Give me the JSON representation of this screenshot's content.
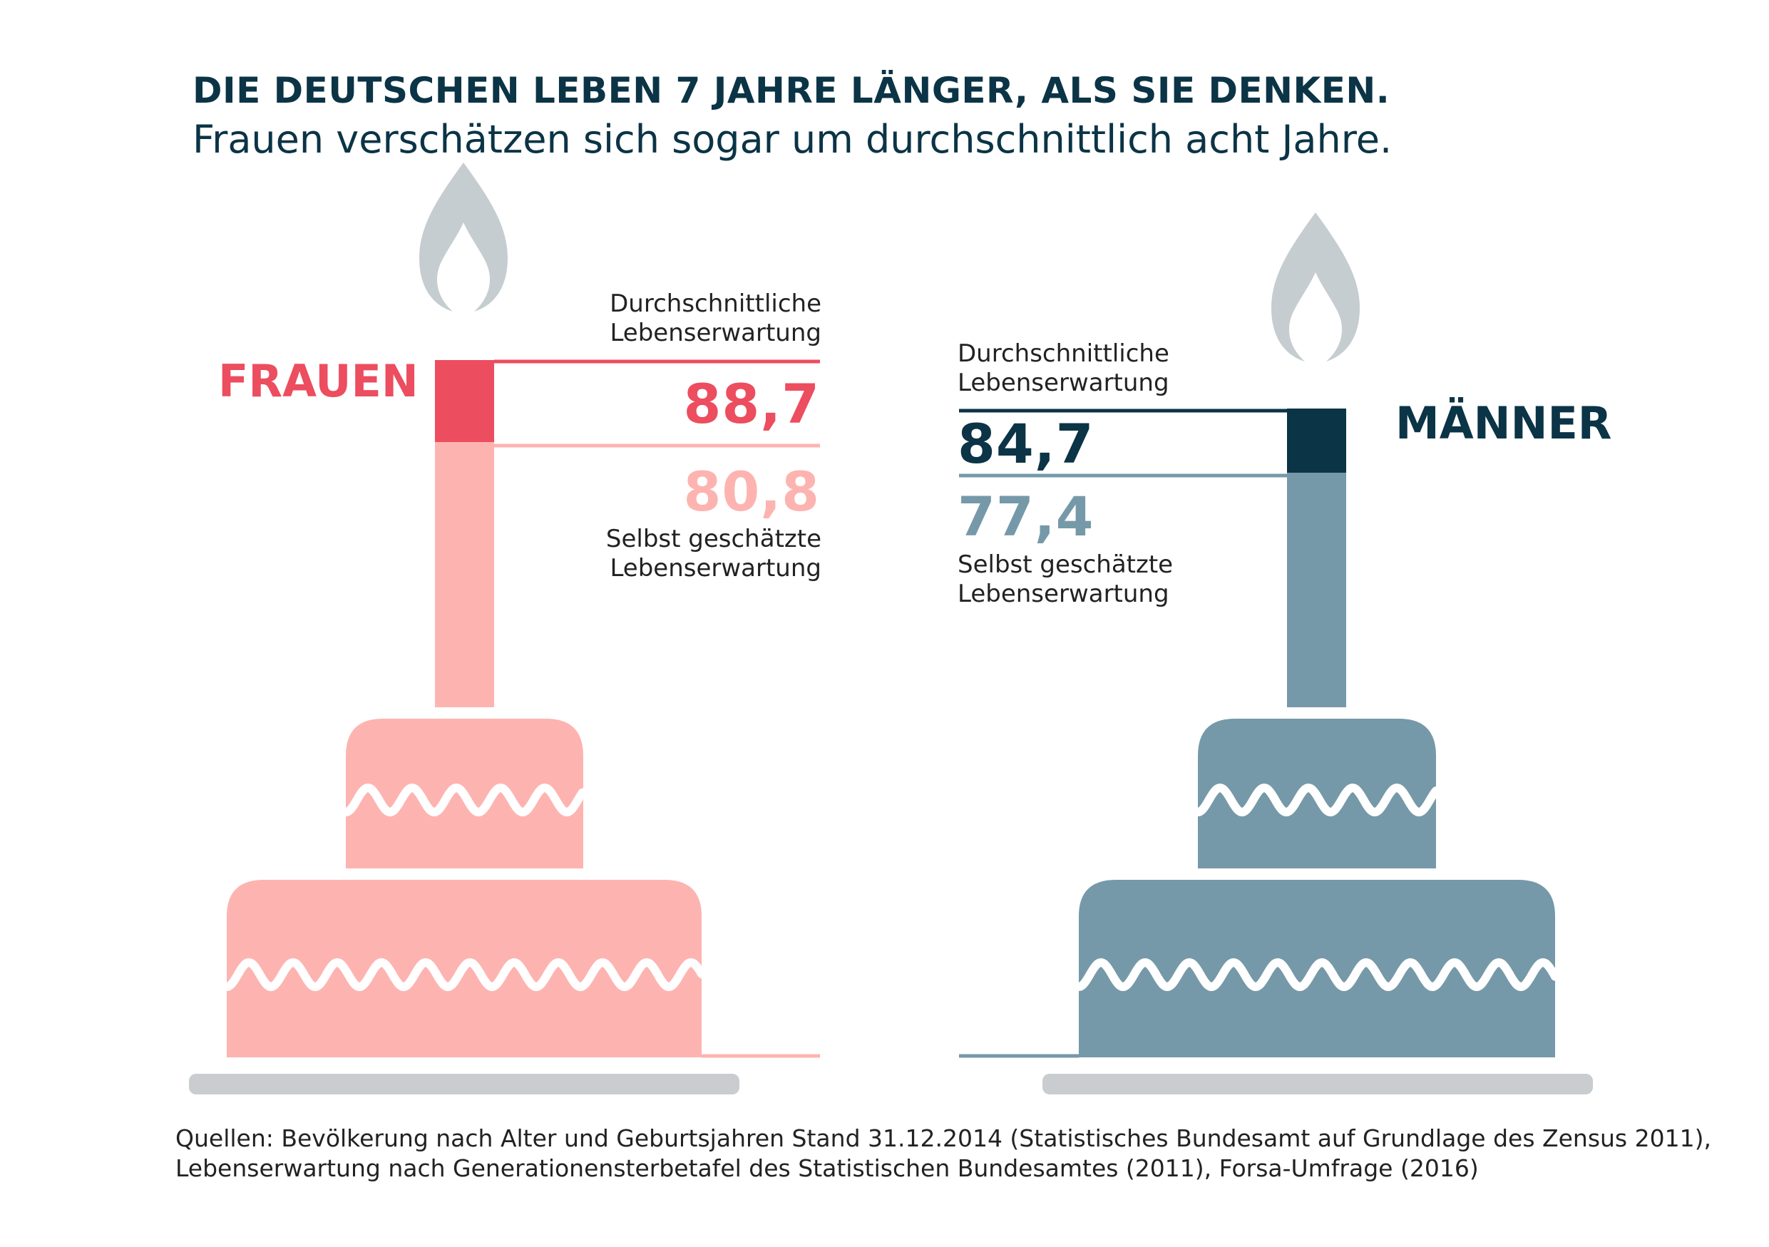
{
  "title": "DIE DEUTSCHEN LEBEN 7 JAHRE LÄNGER, ALS SIE DENKEN.",
  "subtitle": "Frauen verschätzen sich sogar um durchschnittlich acht Jahre.",
  "colors": {
    "title": "#0b3446",
    "frauen_accent": "#ec4d5f",
    "frauen_light": "#fdb4b0",
    "maenner_accent": "#0b3446",
    "maenner_light": "#7599a8",
    "flame": "#c6cdd1",
    "plate": "#c9cdcf"
  },
  "groups": {
    "frauen": {
      "label": "FRAUEN",
      "actual_label": "Durchschnittliche\nLebenserwartung",
      "actual_value": "88,7",
      "estimated_value": "80,8",
      "estimated_label": "Selbst geschätzte\nLebenserwartung"
    },
    "maenner": {
      "label": "MÄNNER",
      "actual_label": "Durchschnittliche\nLebenserwartung",
      "actual_value": "84,7",
      "estimated_value": "77,4",
      "estimated_label": "Selbst geschätzte\nLebenserwartung"
    }
  },
  "chart_data": {
    "type": "bar",
    "title": "DIE DEUTSCHEN LEBEN 7 JAHRE LÄNGER, ALS SIE DENKEN.",
    "subtitle": "Frauen verschätzen sich sogar um durchschnittlich acht Jahre.",
    "categories": [
      "FRAUEN",
      "MÄNNER"
    ],
    "series": [
      {
        "name": "Durchschnittliche Lebenserwartung",
        "values": [
          88.7,
          84.7
        ]
      },
      {
        "name": "Selbst geschätzte Lebenserwartung",
        "values": [
          80.8,
          77.4
        ]
      }
    ]
  },
  "source": "Quellen: Bevölkerung nach Alter und Geburtsjahren Stand 31.12.2014 (Statistisches Bundesamt auf Grundlage des Zensus 2011),\nLebenserwartung nach Generationensterbetafel des Statistischen Bundesamtes (2011), Forsa-Umfrage (2016)"
}
